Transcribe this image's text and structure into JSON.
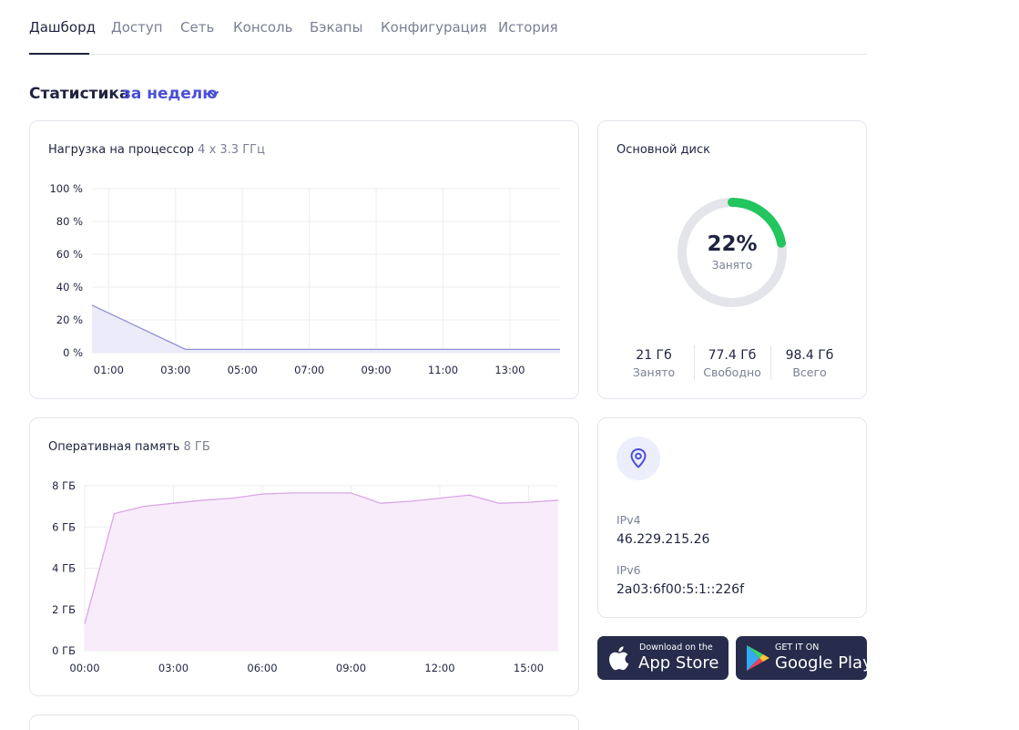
{
  "tabs": [
    {
      "label": "Дашборд",
      "active": true
    },
    {
      "label": "Доступ"
    },
    {
      "label": "Сеть"
    },
    {
      "label": "Консоль"
    },
    {
      "label": "Бэкапы"
    },
    {
      "label": "Конфигурация"
    },
    {
      "label": "История"
    }
  ],
  "stats": {
    "title": "Статистика",
    "period": "за неделю"
  },
  "cpu": {
    "title": "Нагрузка на процессор",
    "spec": "4 x 3.3 ГГц"
  },
  "ram": {
    "title": "Оперативная память",
    "spec": "8 ГБ"
  },
  "disk": {
    "title": "Основной диск",
    "percent": "22%",
    "percent_value": 22,
    "sublabel": "Занято",
    "used_value": "21 Гб",
    "used_label": "Занято",
    "free_value": "77.4 Гб",
    "free_label": "Свободно",
    "total_value": "98.4 Гб",
    "total_label": "Всего"
  },
  "network": {
    "ipv4_label": "IPv4",
    "ipv4": "46.229.215.26",
    "ipv6_label": "IPv6",
    "ipv6": "2a03:6f00:5:1::226f"
  },
  "stores": {
    "appstore_small": "Download on the",
    "appstore_big": "App Store",
    "googleplay_small": "GET IT ON",
    "googleplay_big": "Google Play"
  },
  "colors": {
    "accent": "#4a4fd8",
    "cpu_line": "#8f8fd6",
    "cpu_fill": "#ebebf9",
    "ram_line": "#d9a6e6",
    "ram_fill": "#f8ecfb",
    "disk_used": "#22c55e",
    "disk_track": "#e3e5ea"
  },
  "chart_data": [
    {
      "type": "area",
      "title": "Нагрузка на процессор 4 x 3.3 ГГц",
      "y_ticks": [
        "100 %",
        "80 %",
        "60 %",
        "40 %",
        "20 %",
        "0 %"
      ],
      "x_ticks": [
        "01:00",
        "03:00",
        "05:00",
        "07:00",
        "09:00",
        "11:00",
        "13:00"
      ],
      "ylim": [
        0,
        100
      ],
      "xlim": [
        0.5,
        14.5
      ],
      "x": [
        0.5,
        3.3,
        14.5
      ],
      "values": [
        29,
        2,
        2
      ]
    },
    {
      "type": "area",
      "title": "Оперативная память 8 ГБ",
      "y_ticks": [
        "8 ГБ",
        "6 ГБ",
        "4 ГБ",
        "2 ГБ",
        "0 ГБ"
      ],
      "x_ticks": [
        "00:00",
        "03:00",
        "06:00",
        "09:00",
        "12:00",
        "15:00"
      ],
      "ylim": [
        0,
        8
      ],
      "xlim": [
        0,
        16
      ],
      "x": [
        0,
        1,
        2,
        3,
        4,
        5,
        6,
        7,
        8,
        9,
        10,
        11,
        12,
        13,
        14,
        15,
        16
      ],
      "values": [
        1.3,
        6.65,
        7.0,
        7.15,
        7.3,
        7.4,
        7.6,
        7.65,
        7.65,
        7.65,
        7.15,
        7.25,
        7.4,
        7.55,
        7.15,
        7.2,
        7.3
      ]
    }
  ]
}
